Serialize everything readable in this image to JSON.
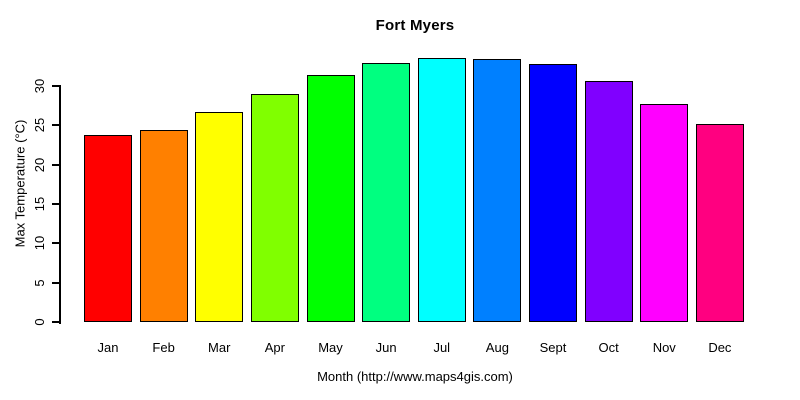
{
  "chart_data": {
    "type": "bar",
    "title": "Fort Myers",
    "xlabel": "Month (http://www.maps4gis.com)",
    "ylabel": "Max Temperature (°C)",
    "categories": [
      "Jan",
      "Feb",
      "Mar",
      "Apr",
      "May",
      "Jun",
      "Jul",
      "Aug",
      "Sept",
      "Oct",
      "Nov",
      "Dec"
    ],
    "values": [
      23.8,
      24.4,
      26.7,
      29.0,
      31.4,
      32.9,
      33.5,
      33.4,
      32.8,
      30.6,
      27.7,
      25.2
    ],
    "bar_colors": [
      "#FF0000",
      "#FF8000",
      "#FFFF00",
      "#80FF00",
      "#00FF00",
      "#00FF80",
      "#00FFFF",
      "#0080FF",
      "#0000FF",
      "#8000FF",
      "#FF00FF",
      "#FF0080"
    ],
    "bar_border_color": "#000000",
    "ylim": [
      0,
      35
    ],
    "yticks": [
      0,
      5,
      10,
      15,
      20,
      25,
      30
    ],
    "grid": false,
    "legend": null,
    "axis_color": "#000000",
    "background_color": "#FFFFFF"
  }
}
